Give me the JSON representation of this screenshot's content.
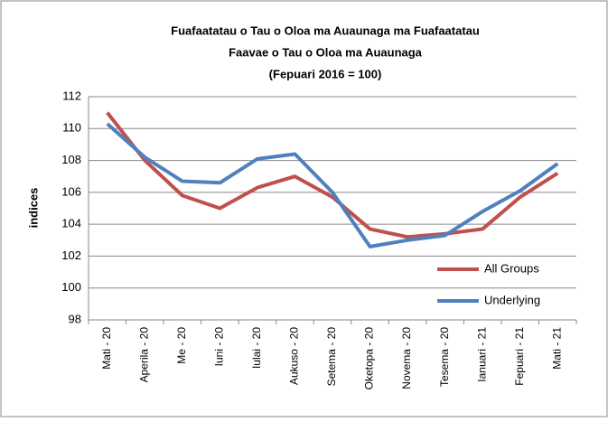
{
  "chart_data": {
    "type": "line",
    "title": [
      "Fuafaatatau o Tau o Oloa ma Auaunaga ma Fuafaatatau",
      "Faavae o Tau o Oloa ma Auaunaga",
      "(Fepuari 2016 = 100)"
    ],
    "y_label": "indices",
    "categories": [
      "Mati - 20",
      "Aperila - 20",
      "Me - 20",
      "Iuni - 20",
      "Iulai - 20",
      "Aukuso - 20",
      "Setema - 20",
      "Oketopa - 20",
      "Novema - 20",
      "Tesema - 20",
      "Ianuari - 21",
      "Fepuari - 21",
      "Mati - 21"
    ],
    "series": [
      {
        "name": "All Groups",
        "color": "#c0504d",
        "values": [
          111.0,
          108.0,
          105.8,
          105.0,
          106.3,
          107.0,
          105.7,
          103.7,
          103.2,
          103.4,
          103.7,
          105.7,
          107.2
        ]
      },
      {
        "name": "Underlying",
        "color": "#4f81bd",
        "values": [
          110.3,
          108.2,
          106.7,
          106.6,
          108.1,
          108.4,
          106.0,
          102.6,
          103.0,
          103.3,
          104.8,
          106.1,
          107.8
        ]
      }
    ],
    "ylim": [
      98,
      112
    ],
    "yticks": [
      98,
      100,
      102,
      104,
      106,
      108,
      110,
      112
    ],
    "grid": true,
    "legend": "lower right"
  }
}
